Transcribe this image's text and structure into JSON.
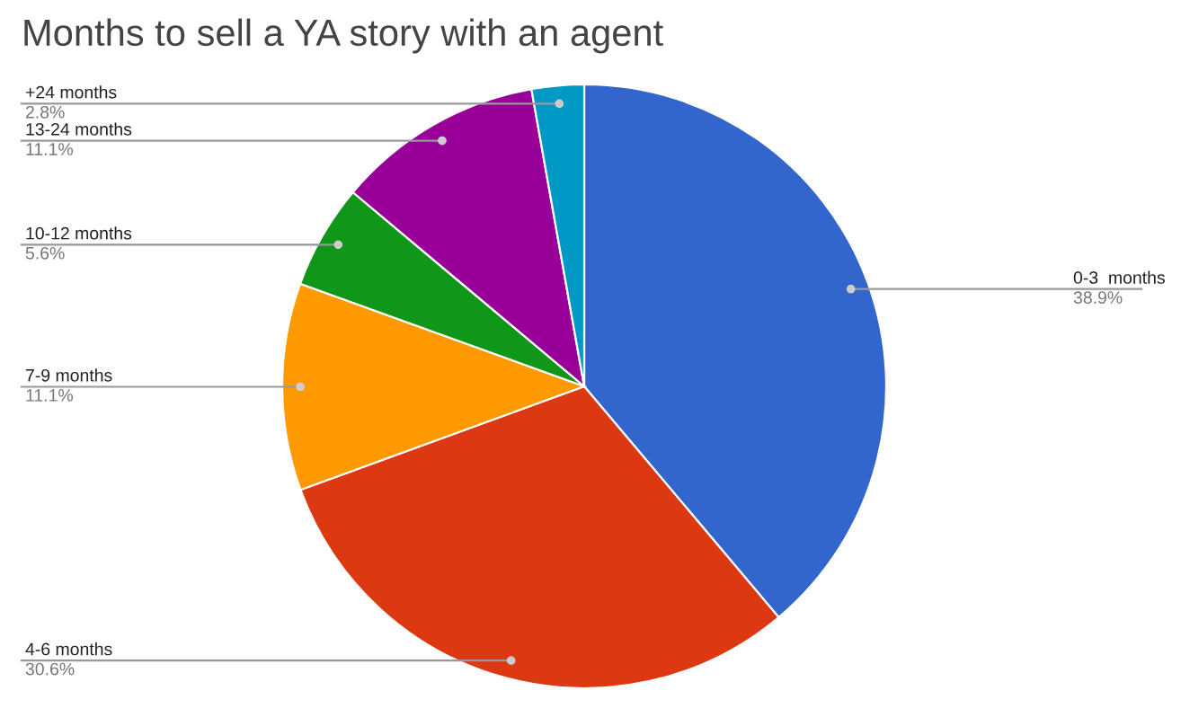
{
  "chart_data": {
    "type": "pie",
    "title": "Months to sell a YA story with an agent",
    "categories": [
      "0-3  months",
      "4-6 months",
      "7-9 months",
      "10-12 months",
      "13-24 months",
      "+24 months"
    ],
    "values": [
      38.9,
      30.6,
      11.1,
      5.6,
      11.1,
      2.8
    ],
    "colors": [
      "#3366cc",
      "#dc3912",
      "#ff9900",
      "#109618",
      "#990099",
      "#0099c6"
    ],
    "value_labels": [
      "38.9%",
      "30.6%",
      "11.1%",
      "5.6%",
      "11.1%",
      "2.8%"
    ],
    "legend": false
  }
}
